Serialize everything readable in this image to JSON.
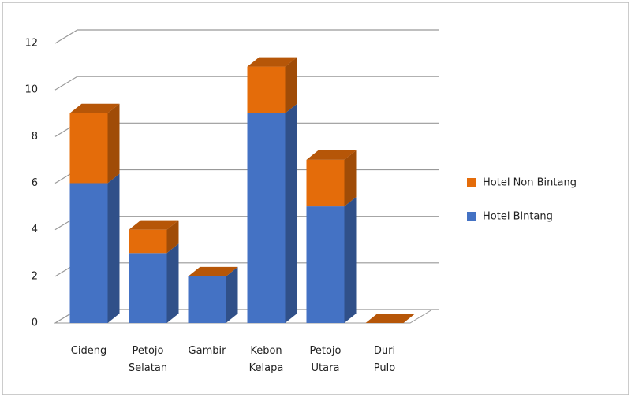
{
  "chart_data": {
    "type": "bar3d_stacked",
    "categories": [
      "Cideng",
      "Petojo Selatan",
      "Gambir",
      "Kebon Kelapa",
      "Petojo Utara",
      "Duri Pulo"
    ],
    "series": [
      {
        "name": "Hotel Bintang",
        "color": "#4472c4",
        "values": [
          6,
          3,
          2,
          9,
          5,
          0
        ]
      },
      {
        "name": "Hotel Non Bintang",
        "color": "#e46c0a",
        "values": [
          3,
          1,
          0,
          2,
          2,
          0
        ]
      }
    ],
    "ylim": [
      0,
      12
    ],
    "yticks": [
      0,
      2,
      4,
      6,
      8,
      10,
      12
    ],
    "grid": true,
    "legend": "right"
  }
}
